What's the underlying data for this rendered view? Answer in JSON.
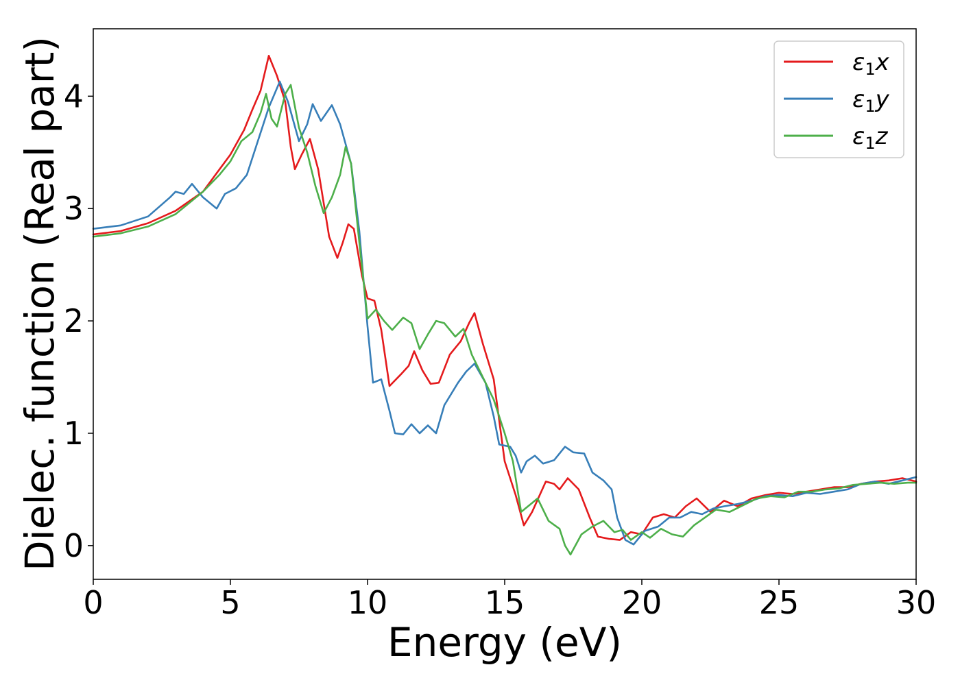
{
  "chart_data": {
    "type": "line",
    "xlabel": "Energy (eV)",
    "ylabel": "Dielec. function (Real part)",
    "xlim": [
      0,
      30
    ],
    "ylim": [
      -0.3,
      4.6
    ],
    "xticks": [
      "0",
      "5",
      "10",
      "15",
      "20",
      "25",
      "30"
    ],
    "yticks": [
      "0",
      "1",
      "2",
      "3",
      "4"
    ],
    "grid": false,
    "legend": {
      "position": "top-right",
      "entries": [
        {
          "symbol": "ε",
          "subscript": "1",
          "suffix": "x"
        },
        {
          "symbol": "ε",
          "subscript": "1",
          "suffix": "y"
        },
        {
          "symbol": "ε",
          "subscript": "1",
          "suffix": "z"
        }
      ]
    },
    "series": [
      {
        "name": "ε1x",
        "color": "#e41a1c",
        "points": [
          [
            0,
            2.77
          ],
          [
            1,
            2.8
          ],
          [
            2,
            2.87
          ],
          [
            3,
            2.98
          ],
          [
            4,
            3.15
          ],
          [
            5,
            3.48
          ],
          [
            5.5,
            3.7
          ],
          [
            5.8,
            3.88
          ],
          [
            6.1,
            4.05
          ],
          [
            6.4,
            4.36
          ],
          [
            6.7,
            4.18
          ],
          [
            7,
            3.95
          ],
          [
            7.2,
            3.55
          ],
          [
            7.35,
            3.35
          ],
          [
            7.6,
            3.48
          ],
          [
            7.9,
            3.62
          ],
          [
            8.2,
            3.35
          ],
          [
            8.6,
            2.75
          ],
          [
            8.9,
            2.56
          ],
          [
            9.1,
            2.7
          ],
          [
            9.3,
            2.86
          ],
          [
            9.5,
            2.82
          ],
          [
            9.8,
            2.4
          ],
          [
            10,
            2.2
          ],
          [
            10.25,
            2.18
          ],
          [
            10.5,
            1.92
          ],
          [
            10.8,
            1.42
          ],
          [
            11.2,
            1.52
          ],
          [
            11.5,
            1.6
          ],
          [
            11.7,
            1.73
          ],
          [
            12,
            1.56
          ],
          [
            12.3,
            1.44
          ],
          [
            12.6,
            1.45
          ],
          [
            13,
            1.7
          ],
          [
            13.4,
            1.82
          ],
          [
            13.7,
            1.98
          ],
          [
            13.9,
            2.07
          ],
          [
            14.2,
            1.8
          ],
          [
            14.6,
            1.48
          ],
          [
            15,
            0.75
          ],
          [
            15.4,
            0.45
          ],
          [
            15.7,
            0.18
          ],
          [
            16,
            0.3
          ],
          [
            16.5,
            0.57
          ],
          [
            16.8,
            0.55
          ],
          [
            17,
            0.5
          ],
          [
            17.3,
            0.6
          ],
          [
            17.7,
            0.5
          ],
          [
            18.1,
            0.25
          ],
          [
            18.4,
            0.08
          ],
          [
            18.8,
            0.06
          ],
          [
            19.2,
            0.05
          ],
          [
            19.6,
            0.12
          ],
          [
            20,
            0.1
          ],
          [
            20.4,
            0.25
          ],
          [
            20.8,
            0.28
          ],
          [
            21.2,
            0.25
          ],
          [
            21.6,
            0.35
          ],
          [
            22,
            0.42
          ],
          [
            22.5,
            0.3
          ],
          [
            23,
            0.4
          ],
          [
            23.5,
            0.35
          ],
          [
            24,
            0.42
          ],
          [
            24.5,
            0.45
          ],
          [
            25,
            0.47
          ],
          [
            25.5,
            0.46
          ],
          [
            26,
            0.48
          ],
          [
            26.5,
            0.5
          ],
          [
            27,
            0.52
          ],
          [
            27.5,
            0.52
          ],
          [
            28,
            0.55
          ],
          [
            28.5,
            0.57
          ],
          [
            29,
            0.58
          ],
          [
            29.5,
            0.6
          ],
          [
            30,
            0.57
          ]
        ]
      },
      {
        "name": "ε1y",
        "color": "#377eb8",
        "points": [
          [
            0,
            2.82
          ],
          [
            1,
            2.85
          ],
          [
            2,
            2.93
          ],
          [
            2.8,
            3.1
          ],
          [
            3,
            3.15
          ],
          [
            3.3,
            3.13
          ],
          [
            3.6,
            3.22
          ],
          [
            4,
            3.1
          ],
          [
            4.5,
            3.0
          ],
          [
            4.8,
            3.13
          ],
          [
            5.2,
            3.18
          ],
          [
            5.6,
            3.3
          ],
          [
            6,
            3.6
          ],
          [
            6.4,
            3.9
          ],
          [
            6.8,
            4.13
          ],
          [
            7.1,
            3.95
          ],
          [
            7.5,
            3.6
          ],
          [
            7.8,
            3.75
          ],
          [
            8,
            3.93
          ],
          [
            8.3,
            3.78
          ],
          [
            8.7,
            3.92
          ],
          [
            9,
            3.75
          ],
          [
            9.4,
            3.4
          ],
          [
            9.7,
            2.8
          ],
          [
            10,
            1.95
          ],
          [
            10.2,
            1.45
          ],
          [
            10.5,
            1.48
          ],
          [
            10.8,
            1.2
          ],
          [
            11,
            1.0
          ],
          [
            11.3,
            0.99
          ],
          [
            11.6,
            1.08
          ],
          [
            11.9,
            1.0
          ],
          [
            12.2,
            1.07
          ],
          [
            12.5,
            1.0
          ],
          [
            12.8,
            1.25
          ],
          [
            13.3,
            1.45
          ],
          [
            13.6,
            1.55
          ],
          [
            13.9,
            1.62
          ],
          [
            14.3,
            1.45
          ],
          [
            14.6,
            1.15
          ],
          [
            14.8,
            0.9
          ],
          [
            15.2,
            0.88
          ],
          [
            15.4,
            0.8
          ],
          [
            15.6,
            0.65
          ],
          [
            15.8,
            0.75
          ],
          [
            16.1,
            0.8
          ],
          [
            16.4,
            0.73
          ],
          [
            16.8,
            0.76
          ],
          [
            17.2,
            0.88
          ],
          [
            17.5,
            0.83
          ],
          [
            17.9,
            0.82
          ],
          [
            18.2,
            0.65
          ],
          [
            18.6,
            0.58
          ],
          [
            18.9,
            0.5
          ],
          [
            19.1,
            0.25
          ],
          [
            19.4,
            0.05
          ],
          [
            19.7,
            0.01
          ],
          [
            20.1,
            0.13
          ],
          [
            20.6,
            0.17
          ],
          [
            21,
            0.25
          ],
          [
            21.4,
            0.25
          ],
          [
            21.8,
            0.3
          ],
          [
            22.2,
            0.28
          ],
          [
            22.6,
            0.33
          ],
          [
            23,
            0.35
          ],
          [
            23.5,
            0.37
          ],
          [
            24,
            0.4
          ],
          [
            24.5,
            0.44
          ],
          [
            25,
            0.45
          ],
          [
            25.5,
            0.44
          ],
          [
            26,
            0.47
          ],
          [
            26.5,
            0.46
          ],
          [
            27,
            0.48
          ],
          [
            27.5,
            0.5
          ],
          [
            28,
            0.55
          ],
          [
            28.5,
            0.57
          ],
          [
            29,
            0.55
          ],
          [
            29.5,
            0.58
          ],
          [
            30,
            0.61
          ]
        ]
      },
      {
        "name": "ε1z",
        "color": "#4daf4a",
        "points": [
          [
            0,
            2.75
          ],
          [
            1,
            2.78
          ],
          [
            2,
            2.84
          ],
          [
            3,
            2.95
          ],
          [
            4,
            3.15
          ],
          [
            4.6,
            3.3
          ],
          [
            5,
            3.42
          ],
          [
            5.4,
            3.6
          ],
          [
            5.8,
            3.68
          ],
          [
            6.1,
            3.85
          ],
          [
            6.3,
            4.02
          ],
          [
            6.5,
            3.8
          ],
          [
            6.7,
            3.73
          ],
          [
            7,
            4.02
          ],
          [
            7.2,
            4.1
          ],
          [
            7.5,
            3.72
          ],
          [
            7.8,
            3.5
          ],
          [
            8.1,
            3.2
          ],
          [
            8.4,
            2.96
          ],
          [
            8.7,
            3.1
          ],
          [
            9,
            3.3
          ],
          [
            9.2,
            3.55
          ],
          [
            9.4,
            3.4
          ],
          [
            9.7,
            2.7
          ],
          [
            10,
            2.02
          ],
          [
            10.3,
            2.1
          ],
          [
            10.6,
            2.0
          ],
          [
            10.9,
            1.92
          ],
          [
            11.3,
            2.03
          ],
          [
            11.6,
            1.98
          ],
          [
            11.9,
            1.75
          ],
          [
            12.2,
            1.88
          ],
          [
            12.5,
            2.0
          ],
          [
            12.8,
            1.98
          ],
          [
            13.2,
            1.86
          ],
          [
            13.5,
            1.93
          ],
          [
            13.8,
            1.7
          ],
          [
            14.2,
            1.5
          ],
          [
            14.6,
            1.3
          ],
          [
            15,
            1.0
          ],
          [
            15.3,
            0.75
          ],
          [
            15.6,
            0.3
          ],
          [
            16,
            0.38
          ],
          [
            16.2,
            0.42
          ],
          [
            16.6,
            0.22
          ],
          [
            17,
            0.15
          ],
          [
            17.2,
            0.0
          ],
          [
            17.4,
            -0.08
          ],
          [
            17.8,
            0.1
          ],
          [
            18.2,
            0.17
          ],
          [
            18.6,
            0.22
          ],
          [
            19,
            0.12
          ],
          [
            19.3,
            0.14
          ],
          [
            19.6,
            0.05
          ],
          [
            20,
            0.12
          ],
          [
            20.3,
            0.07
          ],
          [
            20.7,
            0.15
          ],
          [
            21.1,
            0.1
          ],
          [
            21.5,
            0.08
          ],
          [
            21.9,
            0.18
          ],
          [
            22.3,
            0.25
          ],
          [
            22.7,
            0.32
          ],
          [
            23.2,
            0.3
          ],
          [
            23.7,
            0.36
          ],
          [
            24.2,
            0.42
          ],
          [
            24.7,
            0.44
          ],
          [
            25.2,
            0.43
          ],
          [
            25.7,
            0.48
          ],
          [
            26.2,
            0.48
          ],
          [
            26.7,
            0.5
          ],
          [
            27.2,
            0.51
          ],
          [
            27.7,
            0.54
          ],
          [
            28.2,
            0.55
          ],
          [
            28.7,
            0.56
          ],
          [
            29.2,
            0.55
          ],
          [
            29.7,
            0.56
          ],
          [
            30,
            0.56
          ]
        ]
      }
    ]
  }
}
